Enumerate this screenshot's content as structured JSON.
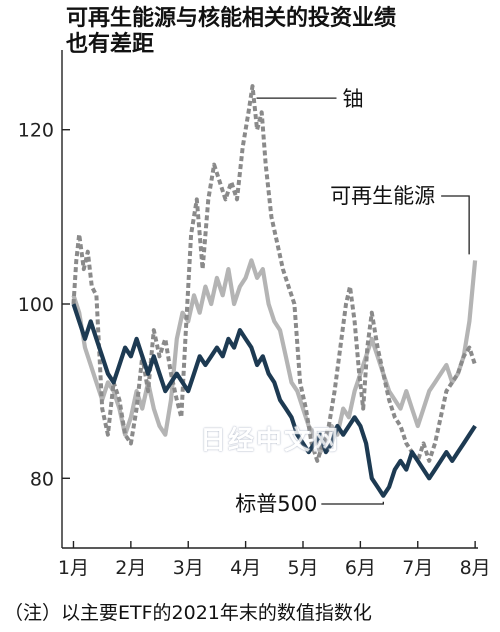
{
  "title_line1": "可再生能源与核能相关的投资业绩",
  "title_line2": "也有差距",
  "note": "（注）以主要ETF的2021年末的数值指数化",
  "watermark": "日经中文网",
  "chart_data": {
    "type": "line",
    "title": "可再生能源与核能相关的投资业绩也有差距",
    "xlabel": "",
    "ylabel": "",
    "ylim": [
      72,
      128
    ],
    "xlim": [
      0.8,
      8.05
    ],
    "x_ticks": [
      1,
      2,
      3,
      4,
      5,
      6,
      7,
      8
    ],
    "x_tick_labels": [
      "1月",
      "2月",
      "3月",
      "4月",
      "5月",
      "6月",
      "7月",
      "8月"
    ],
    "y_ticks": [
      80,
      100,
      120
    ],
    "y_tick_labels": [
      "80",
      "100",
      "120"
    ],
    "grid": false,
    "series": [
      {
        "name": "铀",
        "style": "dashed",
        "color": "#8a8a8a",
        "points": [
          [
            1.0,
            100
          ],
          [
            1.05,
            105
          ],
          [
            1.1,
            108
          ],
          [
            1.18,
            104
          ],
          [
            1.25,
            106
          ],
          [
            1.32,
            102
          ],
          [
            1.4,
            101
          ],
          [
            1.5,
            88
          ],
          [
            1.6,
            85
          ],
          [
            1.7,
            91
          ],
          [
            1.8,
            89
          ],
          [
            1.9,
            85
          ],
          [
            2.0,
            84
          ],
          [
            2.1,
            88
          ],
          [
            2.2,
            94
          ],
          [
            2.3,
            90
          ],
          [
            2.4,
            97
          ],
          [
            2.5,
            94
          ],
          [
            2.6,
            96
          ],
          [
            2.7,
            92
          ],
          [
            2.8,
            89
          ],
          [
            2.88,
            87
          ],
          [
            2.95,
            96
          ],
          [
            3.05,
            108
          ],
          [
            3.15,
            112
          ],
          [
            3.25,
            104
          ],
          [
            3.35,
            112
          ],
          [
            3.45,
            116
          ],
          [
            3.55,
            114
          ],
          [
            3.65,
            112
          ],
          [
            3.75,
            114
          ],
          [
            3.85,
            112
          ],
          [
            3.95,
            118
          ],
          [
            4.05,
            122
          ],
          [
            4.12,
            125
          ],
          [
            4.2,
            120
          ],
          [
            4.28,
            122
          ],
          [
            4.35,
            116
          ],
          [
            4.45,
            110
          ],
          [
            4.55,
            107
          ],
          [
            4.65,
            104
          ],
          [
            4.75,
            102
          ],
          [
            4.85,
            100
          ],
          [
            4.95,
            91
          ],
          [
            5.05,
            88
          ],
          [
            5.15,
            84
          ],
          [
            5.25,
            82
          ],
          [
            5.35,
            84
          ],
          [
            5.45,
            86
          ],
          [
            5.55,
            90
          ],
          [
            5.65,
            95
          ],
          [
            5.75,
            100
          ],
          [
            5.82,
            102
          ],
          [
            5.9,
            98
          ],
          [
            5.98,
            92
          ],
          [
            6.05,
            88
          ],
          [
            6.12,
            95
          ],
          [
            6.2,
            99
          ],
          [
            6.3,
            95
          ],
          [
            6.4,
            92
          ],
          [
            6.5,
            89
          ],
          [
            6.6,
            87
          ],
          [
            6.7,
            86
          ],
          [
            6.8,
            84
          ],
          [
            6.9,
            83
          ],
          [
            7.0,
            82
          ],
          [
            7.1,
            84
          ],
          [
            7.2,
            82
          ],
          [
            7.3,
            84
          ],
          [
            7.4,
            87
          ],
          [
            7.5,
            90
          ],
          [
            7.6,
            91
          ],
          [
            7.7,
            92
          ],
          [
            7.8,
            94
          ],
          [
            7.9,
            95
          ],
          [
            8.0,
            93
          ]
        ]
      },
      {
        "name": "可再生能源",
        "style": "solid",
        "color": "#b4b4b4",
        "points": [
          [
            1.0,
            101
          ],
          [
            1.1,
            99
          ],
          [
            1.2,
            95
          ],
          [
            1.3,
            93
          ],
          [
            1.4,
            91
          ],
          [
            1.5,
            89
          ],
          [
            1.6,
            91
          ],
          [
            1.7,
            90
          ],
          [
            1.8,
            88
          ],
          [
            1.9,
            85
          ],
          [
            2.0,
            87
          ],
          [
            2.1,
            90
          ],
          [
            2.2,
            88
          ],
          [
            2.3,
            91
          ],
          [
            2.4,
            88
          ],
          [
            2.5,
            86
          ],
          [
            2.6,
            85
          ],
          [
            2.7,
            89
          ],
          [
            2.8,
            96
          ],
          [
            2.9,
            99
          ],
          [
            3.0,
            98
          ],
          [
            3.1,
            101
          ],
          [
            3.2,
            99
          ],
          [
            3.3,
            102
          ],
          [
            3.4,
            100
          ],
          [
            3.5,
            103
          ],
          [
            3.6,
            101
          ],
          [
            3.7,
            104
          ],
          [
            3.8,
            100
          ],
          [
            3.9,
            102
          ],
          [
            4.0,
            103
          ],
          [
            4.1,
            105
          ],
          [
            4.2,
            103
          ],
          [
            4.3,
            104
          ],
          [
            4.4,
            100
          ],
          [
            4.5,
            98
          ],
          [
            4.6,
            97
          ],
          [
            4.7,
            94
          ],
          [
            4.8,
            91
          ],
          [
            4.9,
            90
          ],
          [
            5.0,
            88
          ],
          [
            5.1,
            86
          ],
          [
            5.2,
            85
          ],
          [
            5.3,
            83
          ],
          [
            5.4,
            84
          ],
          [
            5.5,
            86
          ],
          [
            5.6,
            85
          ],
          [
            5.7,
            88
          ],
          [
            5.8,
            87
          ],
          [
            5.9,
            90
          ],
          [
            6.0,
            92
          ],
          [
            6.1,
            94
          ],
          [
            6.2,
            96
          ],
          [
            6.3,
            94
          ],
          [
            6.4,
            92
          ],
          [
            6.5,
            90
          ],
          [
            6.6,
            89
          ],
          [
            6.7,
            88
          ],
          [
            6.8,
            90
          ],
          [
            6.9,
            88
          ],
          [
            7.0,
            86
          ],
          [
            7.1,
            88
          ],
          [
            7.2,
            90
          ],
          [
            7.3,
            91
          ],
          [
            7.4,
            92
          ],
          [
            7.5,
            93
          ],
          [
            7.6,
            91
          ],
          [
            7.7,
            92
          ],
          [
            7.8,
            94
          ],
          [
            7.9,
            98
          ],
          [
            8.0,
            105
          ]
        ]
      },
      {
        "name": "标普500",
        "style": "solid",
        "color": "#1d3a52",
        "points": [
          [
            1.0,
            100
          ],
          [
            1.1,
            98
          ],
          [
            1.2,
            96
          ],
          [
            1.3,
            98
          ],
          [
            1.4,
            96
          ],
          [
            1.5,
            94
          ],
          [
            1.6,
            92
          ],
          [
            1.7,
            91
          ],
          [
            1.8,
            93
          ],
          [
            1.9,
            95
          ],
          [
            2.0,
            94
          ],
          [
            2.1,
            96
          ],
          [
            2.2,
            94
          ],
          [
            2.3,
            92
          ],
          [
            2.4,
            94
          ],
          [
            2.5,
            92
          ],
          [
            2.6,
            90
          ],
          [
            2.7,
            91
          ],
          [
            2.8,
            92
          ],
          [
            2.9,
            91
          ],
          [
            3.0,
            90
          ],
          [
            3.1,
            92
          ],
          [
            3.2,
            94
          ],
          [
            3.3,
            93
          ],
          [
            3.4,
            94
          ],
          [
            3.5,
            95
          ],
          [
            3.6,
            94
          ],
          [
            3.7,
            96
          ],
          [
            3.8,
            95
          ],
          [
            3.9,
            97
          ],
          [
            4.0,
            96
          ],
          [
            4.1,
            95
          ],
          [
            4.2,
            93
          ],
          [
            4.3,
            94
          ],
          [
            4.4,
            92
          ],
          [
            4.5,
            91
          ],
          [
            4.6,
            89
          ],
          [
            4.7,
            88
          ],
          [
            4.8,
            87
          ],
          [
            4.9,
            85
          ],
          [
            5.0,
            84
          ],
          [
            5.1,
            83
          ],
          [
            5.2,
            84
          ],
          [
            5.3,
            85
          ],
          [
            5.4,
            83
          ],
          [
            5.5,
            84
          ],
          [
            5.6,
            86
          ],
          [
            5.7,
            85
          ],
          [
            5.8,
            86
          ],
          [
            5.9,
            87
          ],
          [
            6.0,
            86
          ],
          [
            6.1,
            84
          ],
          [
            6.2,
            80
          ],
          [
            6.3,
            79
          ],
          [
            6.4,
            78
          ],
          [
            6.5,
            79
          ],
          [
            6.6,
            81
          ],
          [
            6.7,
            82
          ],
          [
            6.8,
            81
          ],
          [
            6.9,
            83
          ],
          [
            7.0,
            82
          ],
          [
            7.1,
            81
          ],
          [
            7.2,
            80
          ],
          [
            7.3,
            81
          ],
          [
            7.4,
            82
          ],
          [
            7.5,
            83
          ],
          [
            7.6,
            82
          ],
          [
            7.7,
            83
          ],
          [
            7.8,
            84
          ],
          [
            7.9,
            85
          ],
          [
            8.0,
            86
          ]
        ]
      }
    ],
    "legend": "inline-labels"
  }
}
